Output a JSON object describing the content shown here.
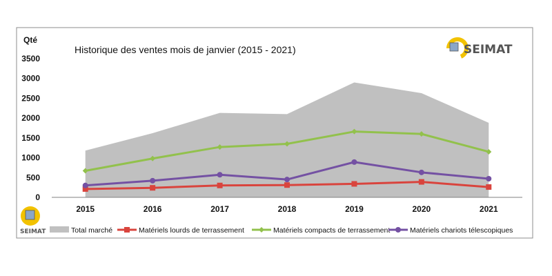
{
  "chart_data": {
    "type": "area+line",
    "title": "Historique des ventes mois de janvier (2015 - 2021)",
    "ylabel": "Qté",
    "xlabel": "",
    "ylim": [
      0,
      3500
    ],
    "yticks": [
      0,
      500,
      1000,
      1500,
      2000,
      2500,
      3000,
      3500
    ],
    "categories": [
      "2015",
      "2016",
      "2017",
      "2018",
      "2019",
      "2020",
      "2021"
    ],
    "grid": false,
    "legend_position": "bottom",
    "series": [
      {
        "name": "Total marché",
        "kind": "area",
        "color": "#c0c0c0",
        "values": [
          1180,
          1620,
          2130,
          2100,
          2900,
          2630,
          1880
        ]
      },
      {
        "name": "Matériels lourds de terrassement",
        "kind": "line",
        "marker": "square",
        "color": "#d9443d",
        "values": [
          210,
          240,
          300,
          310,
          340,
          390,
          260
        ]
      },
      {
        "name": "Matériels compacts de terrassement",
        "kind": "line",
        "marker": "diamond",
        "color": "#92c14c",
        "values": [
          670,
          980,
          1270,
          1350,
          1660,
          1600,
          1150
        ]
      },
      {
        "name": "Matériels chariots télescopiques",
        "kind": "line",
        "marker": "circle",
        "color": "#7451a3",
        "values": [
          300,
          420,
          570,
          450,
          890,
          630,
          470
        ]
      }
    ]
  },
  "logos": {
    "top_right": {
      "text": "SEIMAT",
      "icon": "seimat-logo-icon",
      "color": "#f2c200"
    },
    "bottom_left": {
      "text": "SEIMAT",
      "icon": "seimat-logo-icon",
      "color": "#f2c200"
    }
  }
}
